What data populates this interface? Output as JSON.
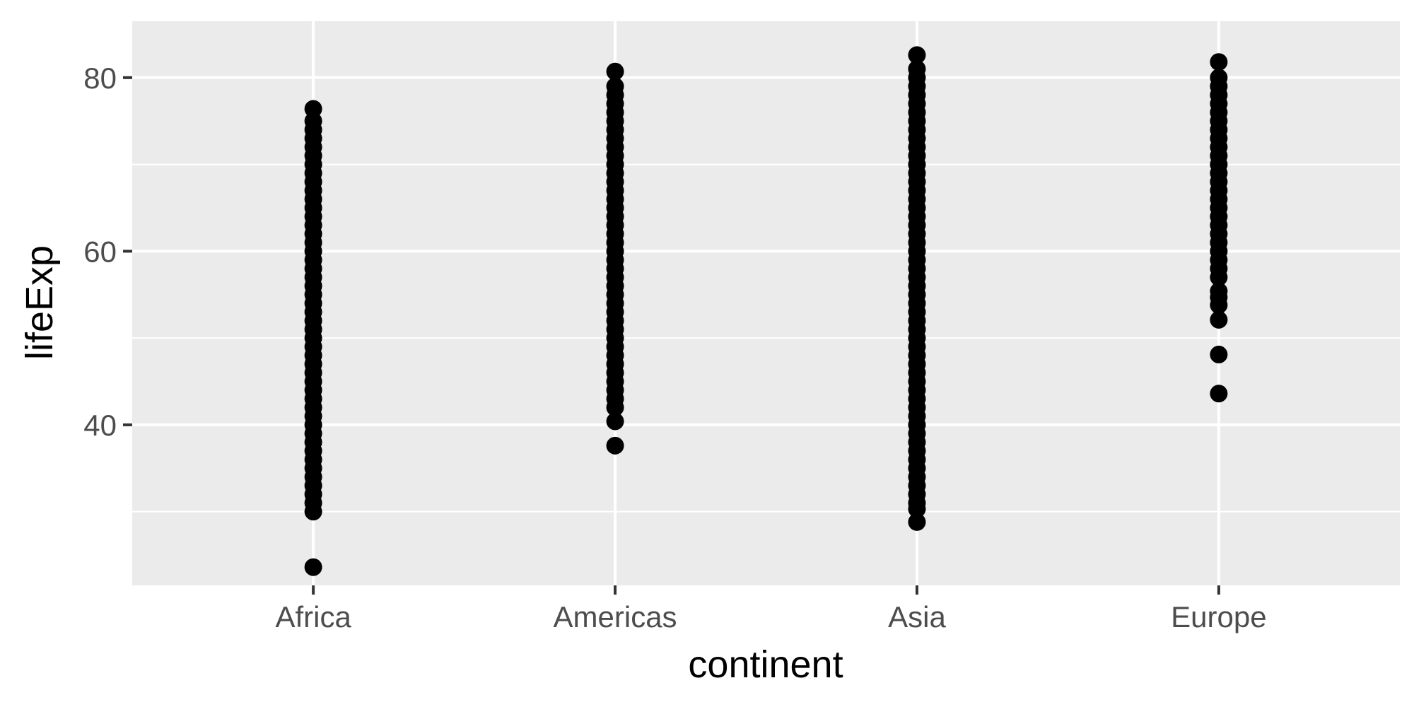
{
  "chart_data": {
    "type": "scatter",
    "xlabel": "continent",
    "ylabel": "lifeExp",
    "categories": [
      "Africa",
      "Americas",
      "Asia",
      "Europe"
    ],
    "y_ticks": [
      40,
      60,
      80
    ],
    "ylim": [
      21.5,
      86.5
    ],
    "grid": true,
    "legend": "none",
    "point_color": "#000000",
    "panel_background": "#ebebeb",
    "grid_color": "#ffffff",
    "series": [
      {
        "category": "Africa",
        "values": [
          23.6,
          30.0,
          31.0,
          32.0,
          33.0,
          34.0,
          35.0,
          36.0,
          37.0,
          38.0,
          39.0,
          40.0,
          41.0,
          42.0,
          43.0,
          44.0,
          45.0,
          46.0,
          47.0,
          48.0,
          49.0,
          50.0,
          51.0,
          52.0,
          53.0,
          54.0,
          55.0,
          56.0,
          57.0,
          58.0,
          59.0,
          60.0,
          61.0,
          62.0,
          63.0,
          64.0,
          65.0,
          66.0,
          67.0,
          68.0,
          69.0,
          70.0,
          71.0,
          72.0,
          73.0,
          74.0,
          75.0,
          76.4
        ]
      },
      {
        "category": "Americas",
        "values": [
          37.6,
          40.4,
          42.0,
          43.0,
          44.0,
          45.0,
          46.0,
          47.0,
          48.0,
          49.0,
          50.0,
          51.0,
          52.0,
          53.0,
          54.0,
          55.0,
          56.0,
          57.0,
          58.0,
          59.0,
          60.0,
          61.0,
          62.0,
          63.0,
          64.0,
          65.0,
          66.0,
          67.0,
          68.0,
          69.0,
          70.0,
          71.0,
          72.0,
          73.0,
          74.0,
          75.0,
          76.0,
          77.0,
          78.0,
          79.0,
          80.7
        ]
      },
      {
        "category": "Asia",
        "values": [
          28.8,
          30.3,
          31.0,
          32.0,
          33.0,
          34.0,
          35.0,
          36.0,
          37.0,
          38.0,
          39.0,
          40.0,
          41.0,
          42.0,
          43.0,
          44.0,
          45.0,
          46.0,
          47.0,
          48.0,
          49.0,
          50.0,
          51.0,
          52.0,
          53.0,
          54.0,
          55.0,
          56.0,
          57.0,
          58.0,
          59.0,
          60.0,
          61.0,
          62.0,
          63.0,
          64.0,
          65.0,
          66.0,
          67.0,
          68.0,
          69.0,
          70.0,
          71.0,
          72.0,
          73.0,
          74.0,
          75.0,
          76.0,
          77.0,
          78.0,
          79.0,
          80.0,
          81.0,
          82.6
        ]
      },
      {
        "category": "Europe",
        "values": [
          43.6,
          48.1,
          52.1,
          53.8,
          54.7,
          55.4,
          57.0,
          58.0,
          59.0,
          60.0,
          61.0,
          62.0,
          63.0,
          64.0,
          65.0,
          66.0,
          67.0,
          68.0,
          69.0,
          70.0,
          71.0,
          72.0,
          73.0,
          74.0,
          75.0,
          76.0,
          77.0,
          78.0,
          79.0,
          80.0,
          81.8
        ]
      }
    ]
  }
}
